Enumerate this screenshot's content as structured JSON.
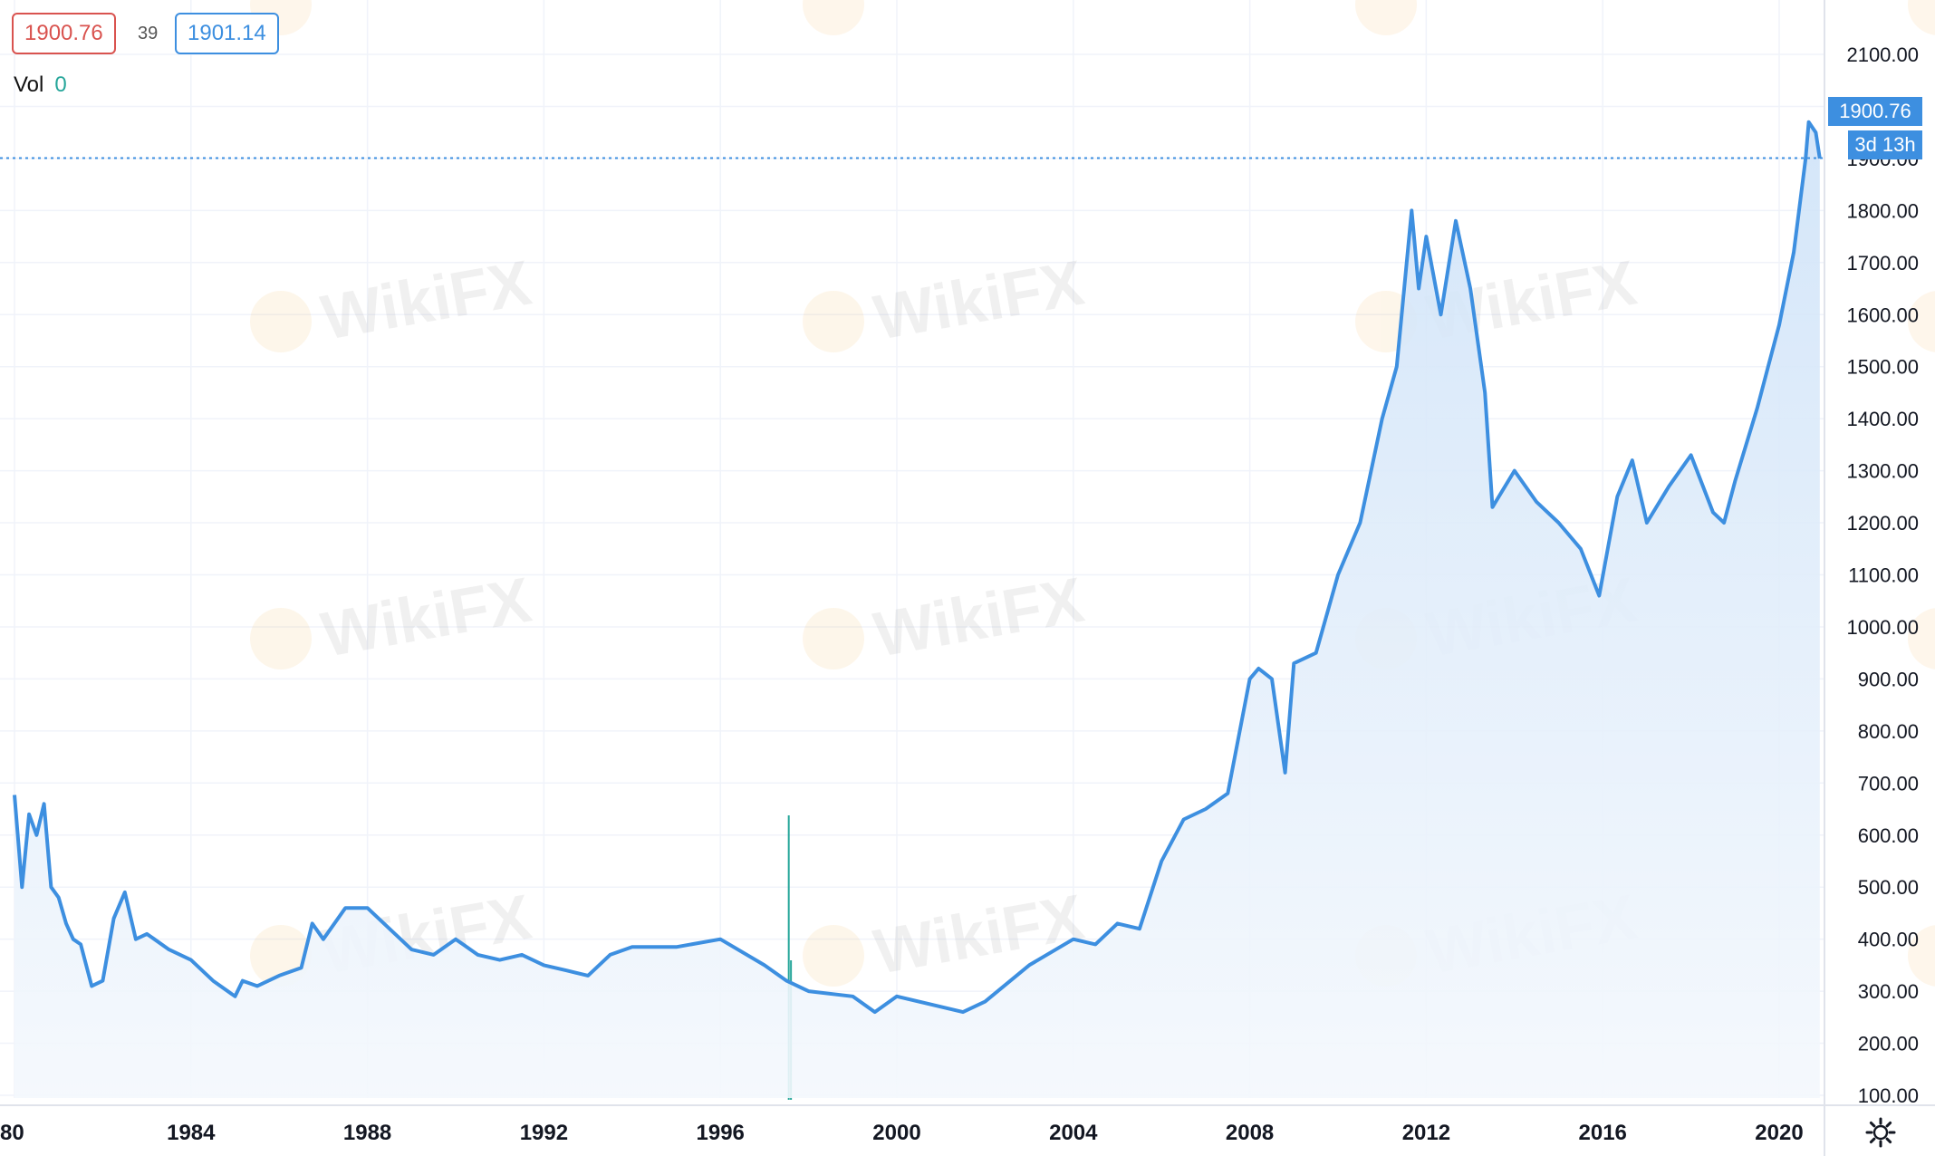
{
  "header": {
    "bid": "1900.76",
    "spread": "39",
    "ask": "1901.14",
    "vol_label": "Vol",
    "vol_value": "0"
  },
  "price_scale": {
    "last_price": "1900.76",
    "countdown": "3d 13h"
  },
  "watermark": "WikiFX",
  "colors": {
    "line": "#3d8fe0",
    "area_top": "#cfe3f8",
    "area_bottom": "#f4f8fd",
    "bid": "#d9534f",
    "ask": "#3d8fe0",
    "volume": "#26a69a",
    "grid": "#f0f3fa",
    "axis_text": "#131722"
  },
  "icons": {
    "settings": "gear-icon"
  },
  "chart_data": {
    "type": "area",
    "title": "",
    "xlabel": "",
    "ylabel": "",
    "x_ticks": [
      "80",
      "1984",
      "1988",
      "1992",
      "1996",
      "2000",
      "2004",
      "2008",
      "2012",
      "2016",
      "2020"
    ],
    "y_ticks": [
      "100.00",
      "200.00",
      "300.00",
      "400.00",
      "500.00",
      "600.00",
      "700.00",
      "800.00",
      "900.00",
      "1000.00",
      "1100.00",
      "1200.00",
      "1300.00",
      "1400.00",
      "1500.00",
      "1600.00",
      "1700.00",
      "1800.00",
      "1900.00",
      "2000.00",
      "2100.00"
    ],
    "xlim": [
      1979.97,
      1980.0
    ],
    "ylim": [
      80,
      2120
    ],
    "grid": true,
    "series": [
      {
        "x": [
          1980.0,
          1980.17,
          1980.33,
          1980.5,
          1980.67,
          1980.83,
          1981.0,
          1981.17,
          1981.33,
          1981.5,
          1981.75,
          1982.0,
          1982.25,
          1982.5,
          1982.75,
          1983.0,
          1983.17,
          1983.5,
          1984.0,
          1984.5,
          1985.0,
          1985.17,
          1985.5,
          1986.0,
          1986.5,
          1986.75,
          1987.0,
          1987.5,
          1988.0,
          1988.5,
          1989.0,
          1989.5,
          1990.0,
          1990.5,
          1991.0,
          1991.5,
          1992.0,
          1992.5,
          1993.0,
          1993.5,
          1994.0,
          1995.0,
          1996.0,
          1997.0,
          1997.5,
          1998.0,
          1999.0,
          1999.5,
          2000.0,
          2001.0,
          2001.5,
          2002.0,
          2003.0,
          2004.0,
          2004.5,
          2005.0,
          2005.5,
          2006.0,
          2006.5,
          2007.0,
          2007.5,
          2008.0,
          2008.2,
          2008.5,
          2008.8,
          2009.0,
          2009.5,
          2010.0,
          2010.5,
          2011.0,
          2011.33,
          2011.67,
          2011.83,
          2012.0,
          2012.33,
          2012.67,
          2013.0,
          2013.33,
          2013.5,
          2014.0,
          2014.5,
          2015.0,
          2015.5,
          2015.92,
          2016.33,
          2016.67,
          2017.0,
          2017.5,
          2018.0,
          2018.5,
          2018.75,
          2019.0,
          2019.5,
          2019.75,
          2020.0,
          2020.33,
          2020.6,
          2020.67,
          2020.83,
          2020.92
        ],
        "values": [
          677,
          500,
          640,
          600,
          660,
          500,
          480,
          430,
          400,
          390,
          310,
          320,
          440,
          490,
          400,
          410,
          400,
          380,
          360,
          320,
          290,
          320,
          310,
          330,
          345,
          430,
          400,
          460,
          460,
          420,
          380,
          370,
          400,
          370,
          360,
          370,
          350,
          340,
          330,
          370,
          385,
          385,
          400,
          350,
          320,
          300,
          290,
          260,
          290,
          270,
          260,
          280,
          350,
          400,
          390,
          430,
          420,
          550,
          630,
          650,
          680,
          900,
          920,
          900,
          720,
          930,
          950,
          1100,
          1200,
          1400,
          1500,
          1800,
          1650,
          1750,
          1600,
          1780,
          1650,
          1450,
          1230,
          1300,
          1240,
          1200,
          1150,
          1060,
          1250,
          1320,
          1200,
          1270,
          1330,
          1220,
          1200,
          1280,
          1420,
          1500,
          1580,
          1720,
          1900,
          1970,
          1950,
          1900
        ]
      }
    ]
  }
}
